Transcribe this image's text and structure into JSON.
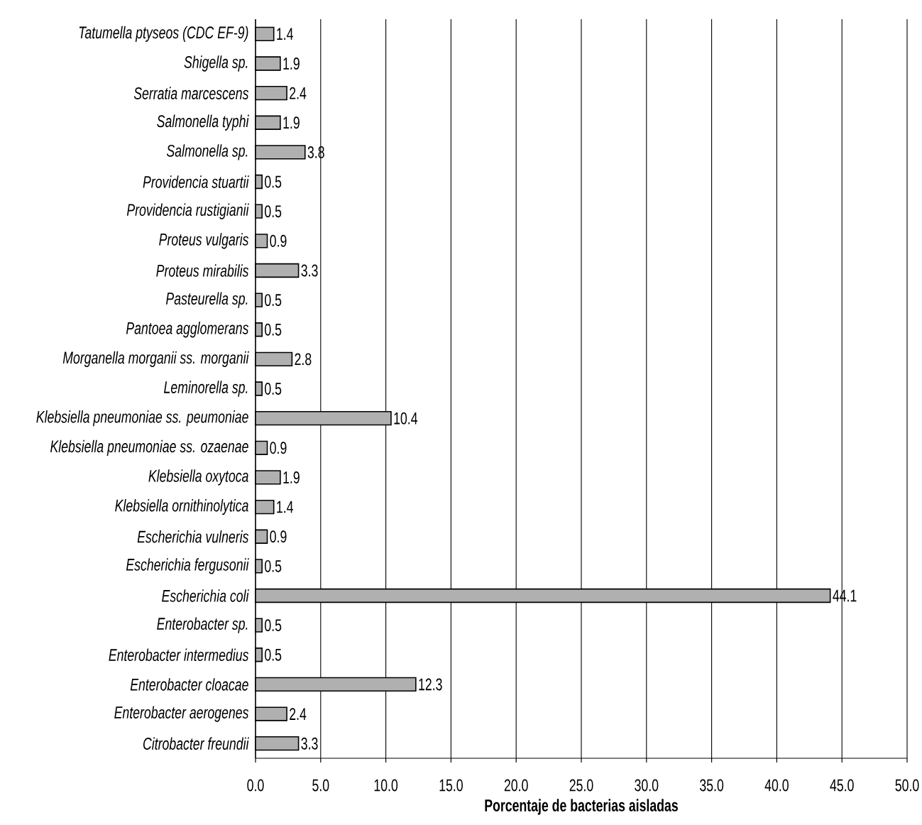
{
  "chart_data": {
    "type": "bar",
    "orientation": "horizontal",
    "xlabel": "Porcentaje de bacterias aisladas",
    "categories": [
      "Tatumella ptyseos (CDC EF-9)",
      "Shigella sp.",
      "Serratia marcescens",
      "Salmonella typhi",
      "Salmonella sp.",
      "Providencia stuartii",
      "Providencia rustigianii",
      "Proteus vulgaris",
      "Proteus mirabilis",
      "Pasteurella sp.",
      "Pantoea agglomerans",
      "Morganella morganii ss. morganii",
      "Leminorella sp.",
      "Klebsiella pneumoniae ss. peumoniae",
      "Klebsiella pneumoniae ss. ozaenae",
      "Klebsiella oxytoca",
      "Klebsiella ornithinolytica",
      "Escherichia vulneris",
      "Escherichia fergusonii",
      "Escherichia coli",
      "Enterobacter sp.",
      "Enterobacter intermedius",
      "Enterobacter cloacae",
      "Enterobacter aerogenes",
      "Citrobacter freundii"
    ],
    "values": [
      1.4,
      1.9,
      2.4,
      1.9,
      3.8,
      0.5,
      0.5,
      0.9,
      3.3,
      0.5,
      0.5,
      2.8,
      0.5,
      10.4,
      0.9,
      1.9,
      1.4,
      0.9,
      0.5,
      44.1,
      0.5,
      0.5,
      12.3,
      2.4,
      3.3
    ],
    "color": "#b0b0b0",
    "xlim": [
      0,
      50
    ],
    "xticks": [
      {
        "value": 0,
        "label": "0.0"
      },
      {
        "value": 5,
        "label": "5.0"
      },
      {
        "value": 10,
        "label": "10.0"
      },
      {
        "value": 15,
        "label": "15.0"
      },
      {
        "value": 20,
        "label": "20.0"
      },
      {
        "value": 25,
        "label": "25.0"
      },
      {
        "value": 30,
        "label": "30.0"
      },
      {
        "value": 35,
        "label": "35.0"
      },
      {
        "value": 40,
        "label": "40.0"
      },
      {
        "value": 45,
        "label": "45.0"
      },
      {
        "value": 50,
        "label": "50.0"
      }
    ],
    "grid": "x",
    "data_labels": true
  }
}
